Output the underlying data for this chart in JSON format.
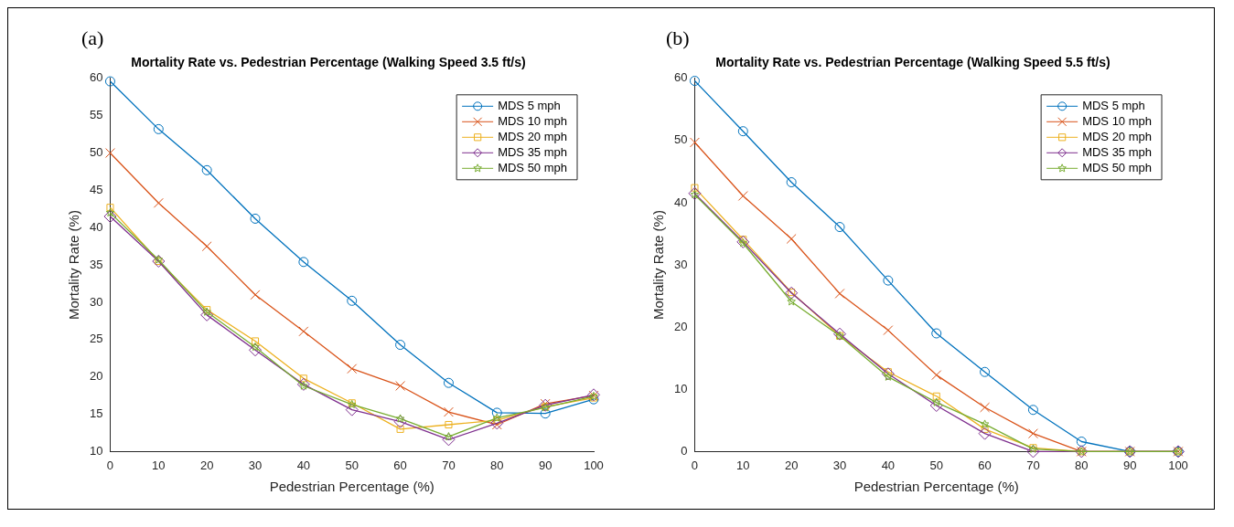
{
  "chart_data": [
    {
      "type": "line",
      "title": "Mortality Rate vs. Pedestrian Percentage (Walking Speed 3.5 ft/s)",
      "xlabel": "Pedestrian Percentage (%)",
      "ylabel": "Mortality Rate (%)",
      "annotations": [
        "(a)"
      ],
      "x": [
        0,
        10,
        20,
        30,
        40,
        50,
        60,
        70,
        80,
        90,
        100
      ],
      "series": [
        {
          "name": "MDS 5 mph",
          "color": "#0072bd",
          "marker": "circle",
          "values": [
            59.6,
            53.2,
            47.7,
            41.2,
            35.4,
            30.2,
            24.3,
            19.2,
            15.2,
            15.1,
            17.0
          ]
        },
        {
          "name": "MDS 10 mph",
          "color": "#d95319",
          "marker": "cross",
          "values": [
            50.0,
            43.3,
            37.5,
            31.0,
            26.1,
            21.1,
            18.8,
            15.3,
            13.6,
            16.4,
            17.5
          ]
        },
        {
          "name": "MDS 20 mph",
          "color": "#edb120",
          "marker": "square",
          "values": [
            42.7,
            35.5,
            29.0,
            24.8,
            19.8,
            16.5,
            13.0,
            13.6,
            14.2,
            16.0,
            17.2
          ]
        },
        {
          "name": "MDS 35 mph",
          "color": "#7e2f8e",
          "marker": "diamond",
          "values": [
            41.5,
            35.5,
            28.3,
            23.6,
            19.0,
            15.6,
            14.0,
            11.6,
            13.8,
            16.2,
            17.6
          ]
        },
        {
          "name": "MDS 50 mph",
          "color": "#77ac30",
          "marker": "star",
          "values": [
            42.0,
            35.7,
            28.7,
            24.0,
            18.8,
            16.3,
            14.4,
            12.0,
            14.5,
            15.9,
            17.4
          ]
        }
      ],
      "xlim": [
        0,
        100
      ],
      "xticks": [
        0,
        10,
        20,
        30,
        40,
        50,
        60,
        70,
        80,
        90,
        100
      ],
      "ylim": [
        10,
        60
      ],
      "yticks": [
        10,
        15,
        20,
        25,
        30,
        35,
        40,
        45,
        50,
        55,
        60
      ],
      "grid": false,
      "legend": "top right"
    },
    {
      "type": "line",
      "title": "Mortality Rate vs. Pedestrian Percentage (Walking Speed 5.5 ft/s)",
      "xlabel": "Pedestrian Percentage (%)",
      "ylabel": "Mortality Rate (%)",
      "annotations": [
        "(b)"
      ],
      "x": [
        0,
        10,
        20,
        30,
        40,
        50,
        60,
        70,
        80,
        90,
        100
      ],
      "series": [
        {
          "name": "MDS 5 mph",
          "color": "#0072bd",
          "marker": "circle",
          "values": [
            59.6,
            51.5,
            43.3,
            36.1,
            27.5,
            19.0,
            12.8,
            6.7,
            1.6,
            0,
            0
          ]
        },
        {
          "name": "MDS 10 mph",
          "color": "#d95319",
          "marker": "cross",
          "values": [
            49.7,
            41.1,
            34.2,
            25.4,
            19.5,
            12.3,
            7.1,
            2.9,
            0,
            0,
            0
          ]
        },
        {
          "name": "MDS 20 mph",
          "color": "#edb120",
          "marker": "square",
          "values": [
            42.4,
            34.1,
            25.6,
            18.6,
            12.8,
            8.9,
            3.6,
            0.6,
            0,
            0,
            0
          ]
        },
        {
          "name": "MDS 35 mph",
          "color": "#7e2f8e",
          "marker": "diamond",
          "values": [
            41.5,
            33.7,
            25.5,
            18.9,
            12.5,
            7.4,
            2.9,
            0,
            0,
            0,
            0
          ]
        },
        {
          "name": "MDS 50 mph",
          "color": "#77ac30",
          "marker": "star",
          "values": [
            41.3,
            33.5,
            24.1,
            18.6,
            12.0,
            7.9,
            4.4,
            0.4,
            0,
            0,
            0
          ]
        }
      ],
      "xlim": [
        0,
        100
      ],
      "xticks": [
        0,
        10,
        20,
        30,
        40,
        50,
        60,
        70,
        80,
        90,
        100
      ],
      "ylim": [
        0,
        60
      ],
      "yticks": [
        0,
        10,
        20,
        30,
        40,
        50,
        60
      ],
      "grid": false,
      "legend": "top right"
    }
  ]
}
